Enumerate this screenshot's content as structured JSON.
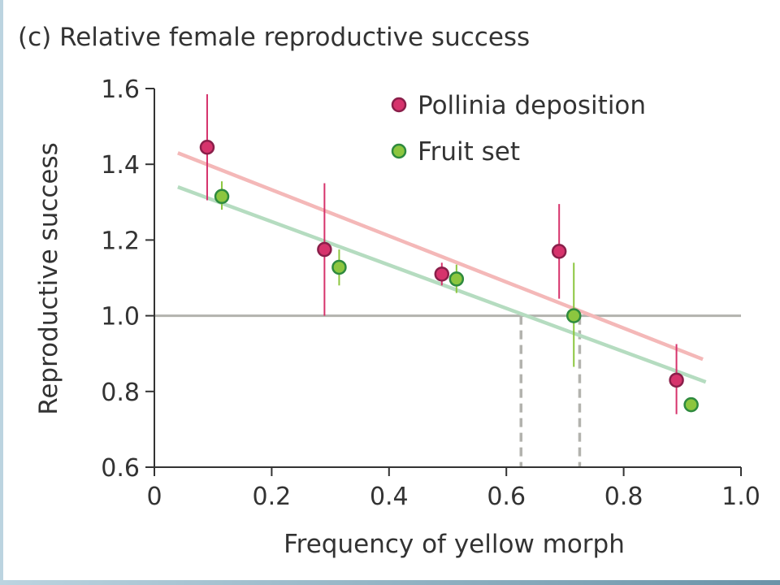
{
  "chart_data": {
    "type": "scatter",
    "title": "(c) Relative female reproductive success",
    "xlabel": "Frequency of yellow morph",
    "ylabel": "Reproductive success",
    "xlim": [
      0,
      1.0
    ],
    "ylim": [
      0.6,
      1.6
    ],
    "x_ticks": [
      "0",
      "0.2",
      "0.4",
      "0.6",
      "0.8",
      "1.0"
    ],
    "y_ticks": [
      "0.6",
      "0.8",
      "1.0",
      "1.2",
      "1.4",
      "1.6"
    ],
    "grid": false,
    "legend_position": "top-right",
    "reference_line_y": 1.0,
    "dashed_drop_lines_x": [
      0.625,
      0.725
    ],
    "series": [
      {
        "name": "Pollinia deposition",
        "color": "#d6336c",
        "trend_color": "#f4b8b8",
        "points": [
          {
            "x": 0.09,
            "y": 1.445,
            "err_low": 1.305,
            "err_high": 1.585
          },
          {
            "x": 0.29,
            "y": 1.175,
            "err_low": 1.0,
            "err_high": 1.35
          },
          {
            "x": 0.49,
            "y": 1.11,
            "err_low": 1.08,
            "err_high": 1.14
          },
          {
            "x": 0.69,
            "y": 1.17,
            "err_low": 1.045,
            "err_high": 1.295
          },
          {
            "x": 0.89,
            "y": 0.83,
            "err_low": 0.74,
            "err_high": 0.925
          }
        ],
        "trend": {
          "x": [
            0.04,
            0.935
          ],
          "y": [
            1.43,
            0.885
          ]
        }
      },
      {
        "name": "Fruit set",
        "color": "#8cc63f",
        "trend_color": "#b5dcc0",
        "points": [
          {
            "x": 0.115,
            "y": 1.315,
            "err_low": 1.28,
            "err_high": 1.355
          },
          {
            "x": 0.315,
            "y": 1.128,
            "err_low": 1.08,
            "err_high": 1.175
          },
          {
            "x": 0.515,
            "y": 1.097,
            "err_low": 1.06,
            "err_high": 1.135
          },
          {
            "x": 0.715,
            "y": 1.0,
            "err_low": 0.865,
            "err_high": 1.14
          },
          {
            "x": 0.915,
            "y": 0.765,
            "err_low": 0.765,
            "err_high": 0.765
          }
        ],
        "trend": {
          "x": [
            0.04,
            0.94
          ],
          "y": [
            1.34,
            0.825
          ]
        }
      }
    ]
  }
}
